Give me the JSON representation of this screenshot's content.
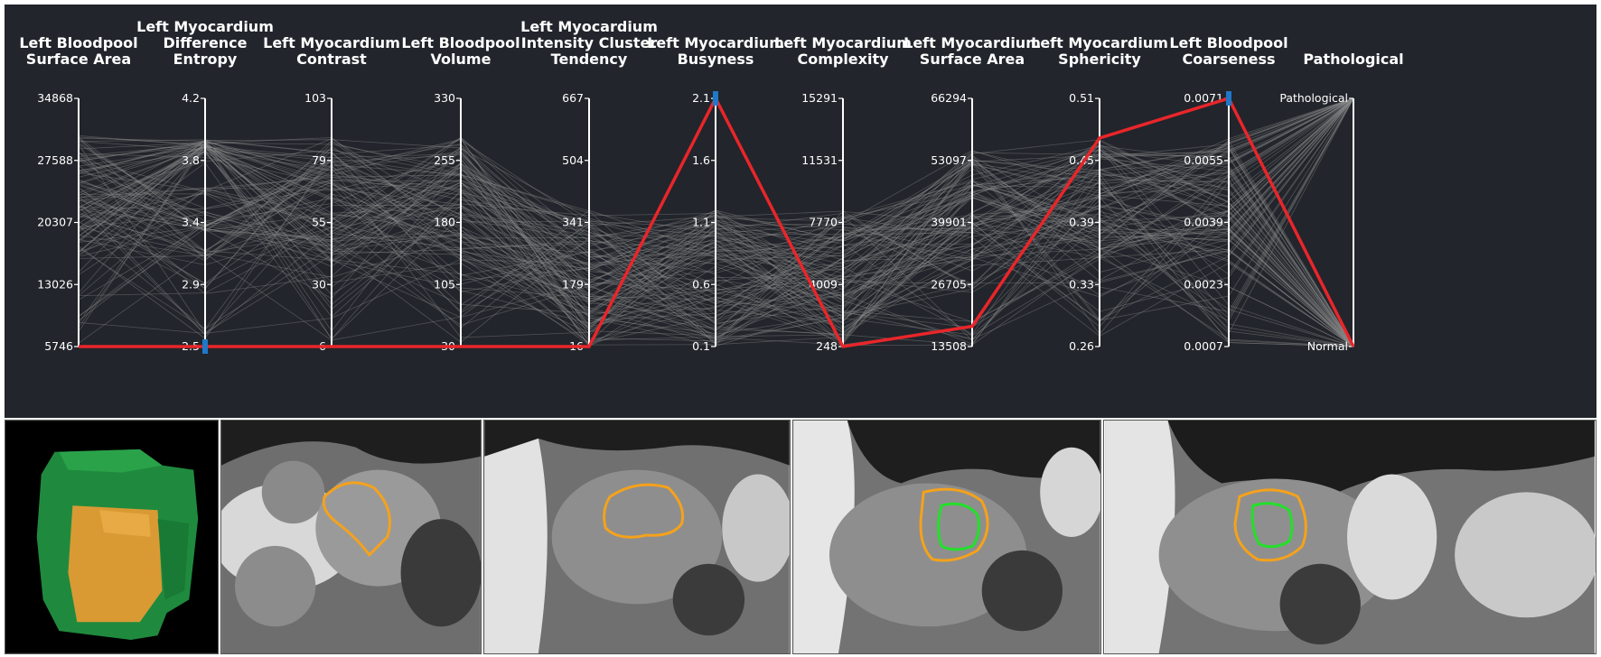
{
  "chart_data": {
    "type": "parallel-coordinates",
    "axes": [
      {
        "label": [
          "Left Bloodpool",
          "Surface Area"
        ],
        "ticks": [
          "34868",
          "27588",
          "20307",
          "13026",
          "5746"
        ],
        "min": 5746,
        "max": 34868
      },
      {
        "label": [
          "Left Myocardium",
          "Difference",
          "Entropy"
        ],
        "ticks": [
          "4.2",
          "3.8",
          "3.4",
          "2.9",
          "2.5"
        ],
        "min": 2.5,
        "max": 4.2
      },
      {
        "label": [
          "Left Myocardium",
          "Contrast"
        ],
        "ticks": [
          "103",
          "79",
          "55",
          "30",
          "6"
        ],
        "min": 6,
        "max": 103
      },
      {
        "label": [
          "Left Bloodpool",
          "Volume"
        ],
        "ticks": [
          "330",
          "255",
          "180",
          "105",
          "30"
        ],
        "min": 30,
        "max": 330
      },
      {
        "label": [
          "Left Myocardium",
          "Intensity Cluster",
          "Tendency"
        ],
        "ticks": [
          "667",
          "504",
          "341",
          "179",
          "16"
        ],
        "min": 16,
        "max": 667
      },
      {
        "label": [
          "Left Myocardium",
          "Busyness"
        ],
        "ticks": [
          "2.1",
          "1.6",
          "1.1",
          "0.6",
          "0.1"
        ],
        "min": 0.1,
        "max": 2.1
      },
      {
        "label": [
          "Left Myocardium",
          "Complexity"
        ],
        "ticks": [
          "15291",
          "11531",
          "7770",
          "4009",
          "248"
        ],
        "min": 248,
        "max": 15291
      },
      {
        "label": [
          "Left Myocardium",
          "Surface Area"
        ],
        "ticks": [
          "66294",
          "53097",
          "39901",
          "26705",
          "13508"
        ],
        "min": 13508,
        "max": 66294
      },
      {
        "label": [
          "Left Myocardium",
          "Sphericity"
        ],
        "ticks": [
          "0.51",
          "0.45",
          "0.39",
          "0.33",
          "0.26"
        ],
        "min": 0.26,
        "max": 0.51
      },
      {
        "label": [
          "Left Bloodpool",
          "Coarseness"
        ],
        "ticks": [
          "0.0071",
          "0.0055",
          "0.0039",
          "0.0023",
          "0.0007"
        ],
        "min": 0.0007,
        "max": 0.0071
      },
      {
        "label": [
          "Pathological"
        ],
        "ticks": [
          "Pathological",
          "Normal"
        ],
        "categorical": true
      }
    ],
    "highlighted_record": {
      "color": "#e8262a",
      "values": [
        5746,
        2.5,
        6,
        30,
        16,
        2.1,
        248,
        17800,
        0.47,
        0.0071,
        "Normal"
      ]
    },
    "background_color": "#22252b",
    "background_line_color": "#8a8a8a",
    "brush_color": "#1f78c8",
    "brushed_axes": [
      1,
      5,
      9
    ]
  },
  "image_strip": {
    "panels": [
      "3d-render",
      "mri-slice-1",
      "mri-slice-2",
      "mri-slice-3",
      "mri-slice-4"
    ],
    "contour_colors": {
      "outer": "#f5a21b",
      "inner": "#22e02a"
    }
  }
}
